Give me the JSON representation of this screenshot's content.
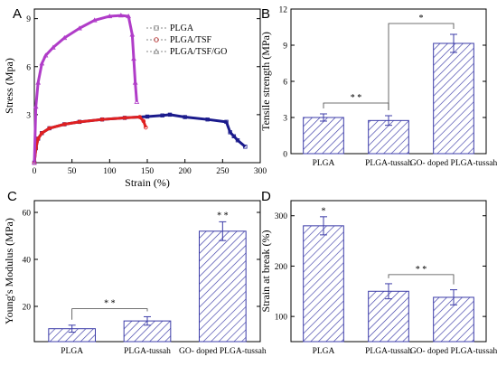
{
  "chart_data": [
    {
      "id": "A",
      "type": "line",
      "panel_label": "A",
      "xlabel": "Strain (%)",
      "ylabel": "Stress (Mpa)",
      "xlim": [
        0,
        300
      ],
      "ylim": [
        0,
        9.6
      ],
      "xticks": [
        0,
        50,
        100,
        150,
        200,
        250,
        300
      ],
      "yticks": [
        3,
        6,
        9
      ],
      "legend_position": "top-right",
      "series": [
        {
          "name": "PLGA",
          "color": "#1a1a8c",
          "marker": "square",
          "x": [
            0,
            2,
            5,
            10,
            20,
            40,
            60,
            90,
            120,
            150,
            170,
            180,
            200,
            230,
            255,
            260,
            265,
            270,
            280
          ],
          "y": [
            0,
            0.9,
            1.5,
            1.85,
            2.15,
            2.4,
            2.55,
            2.7,
            2.8,
            2.88,
            2.95,
            3.0,
            2.85,
            2.7,
            2.55,
            1.9,
            1.65,
            1.4,
            1.0
          ]
        },
        {
          "name": "PLGA/TSF",
          "color": "#e02020",
          "marker": "circle",
          "x": [
            0,
            2,
            5,
            10,
            20,
            40,
            60,
            90,
            120,
            140,
            145,
            148
          ],
          "y": [
            0,
            0.9,
            1.5,
            1.85,
            2.15,
            2.4,
            2.55,
            2.7,
            2.8,
            2.85,
            2.6,
            2.2
          ]
        },
        {
          "name": "PLGA/TSF/GO",
          "color": "#b03cc8",
          "marker": "triangle",
          "x": [
            0,
            2,
            5,
            10,
            15,
            25,
            40,
            60,
            80,
            100,
            115,
            125,
            130,
            132,
            134,
            136
          ],
          "y": [
            0,
            3.5,
            5.0,
            6.2,
            6.7,
            7.2,
            7.8,
            8.4,
            8.9,
            9.15,
            9.2,
            9.15,
            8.0,
            6.5,
            5.0,
            3.8
          ]
        }
      ]
    },
    {
      "id": "B",
      "type": "bar",
      "panel_label": "B",
      "ylabel": "Tensile strength (MPa)",
      "ylim": [
        0,
        12
      ],
      "yticks": [
        0,
        3,
        6,
        9,
        12
      ],
      "categories": [
        "PLGA",
        "PLGA-tussah",
        "GO- doped PLGA-tussah"
      ],
      "values": [
        3.0,
        2.75,
        9.15
      ],
      "errors": [
        0.3,
        0.4,
        0.75
      ],
      "significance": [
        {
          "from": 0,
          "to": 1,
          "label": "* *",
          "level": 4.2
        },
        {
          "from": 1,
          "to": 2,
          "label": "*",
          "level": 10.8
        }
      ]
    },
    {
      "id": "C",
      "type": "bar",
      "panel_label": "C",
      "ylabel": "Young's Modulus (MPa)",
      "ylim": [
        5,
        65
      ],
      "yticks": [
        20,
        40,
        60
      ],
      "categories": [
        "PLGA",
        "PLGA-tussah",
        "GO- doped PLGA-tussah"
      ],
      "values": [
        10.5,
        13.8,
        52.0
      ],
      "errors": [
        1.5,
        1.8,
        4.0
      ],
      "significance": [
        {
          "from": 0,
          "to": 1,
          "label": "* *",
          "level": 19
        },
        {
          "from": 2,
          "to": 2,
          "label": "* *",
          "level": 57.5
        }
      ]
    },
    {
      "id": "D",
      "type": "bar",
      "panel_label": "D",
      "ylabel": "Strain at break (%)",
      "ylim": [
        50,
        330
      ],
      "yticks": [
        100,
        200,
        300
      ],
      "categories": [
        "PLGA",
        "PLGA-tussah",
        "GO- doped PLGA-tussah"
      ],
      "values": [
        280,
        150,
        138
      ],
      "errors": [
        18,
        15,
        15
      ],
      "significance": [
        {
          "from": 0,
          "to": 0,
          "label": "*",
          "level": 304
        },
        {
          "from": 1,
          "to": 2,
          "label": "* *",
          "level": 183
        }
      ]
    }
  ]
}
